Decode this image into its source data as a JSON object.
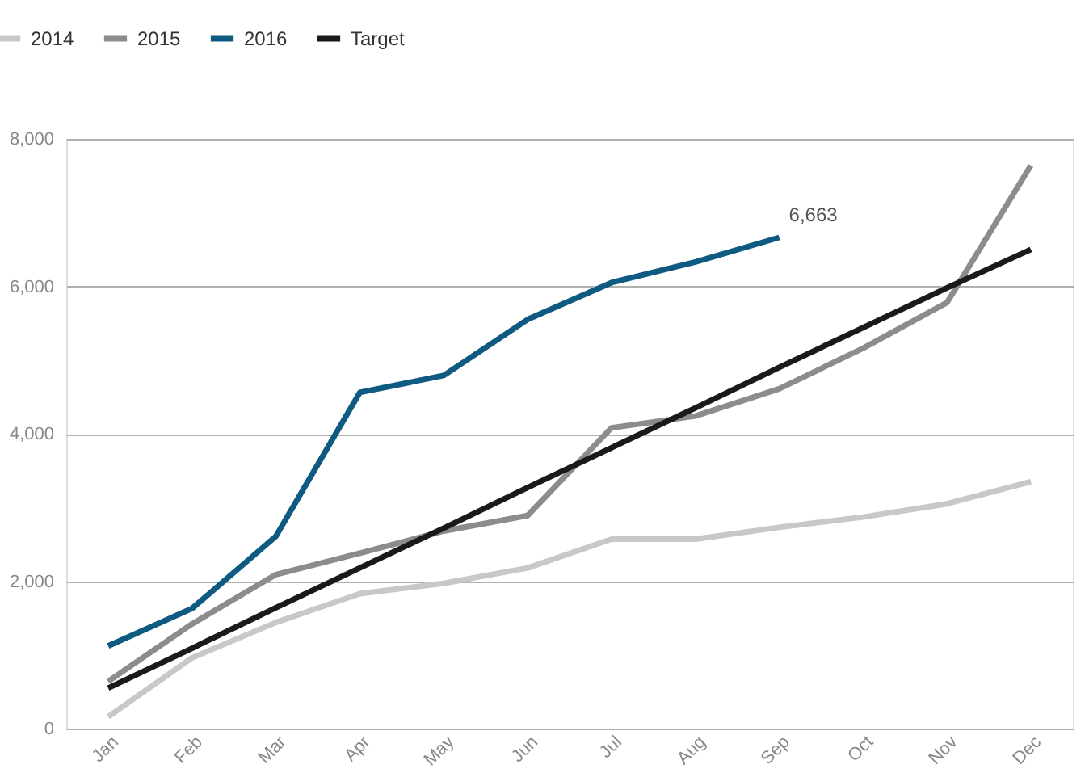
{
  "chart_data": {
    "type": "line",
    "categories": [
      "Jan",
      "Feb",
      "Mar",
      "Apr",
      "May",
      "Jun",
      "Jul",
      "Aug",
      "Sep",
      "Oct",
      "Nov",
      "Dec"
    ],
    "series": [
      {
        "name": "2014",
        "color": "#c8c8c8",
        "values": [
          160,
          960,
          1440,
          1830,
          1970,
          2180,
          2570,
          2570,
          2730,
          2870,
          3050,
          3350
        ]
      },
      {
        "name": "2015",
        "color": "#8c8c8c",
        "values": [
          640,
          1420,
          2090,
          2380,
          2680,
          2890,
          4080,
          4240,
          4610,
          5160,
          5780,
          7640
        ]
      },
      {
        "name": "2016",
        "color": "#0e5a80",
        "values": [
          1120,
          1630,
          2610,
          4560,
          4790,
          5550,
          6050,
          6330,
          6663,
          null,
          null,
          null
        ]
      },
      {
        "name": "Target",
        "color": "#1a1a1a",
        "values": [
          550,
          1090,
          1640,
          2180,
          2720,
          3270,
          3810,
          4350,
          4900,
          5440,
          5980,
          6500
        ]
      }
    ],
    "ylim": [
      0,
      8000
    ],
    "yticks": [
      0,
      {
        "value": 2000,
        "label": "2,000"
      },
      {
        "value": 4000,
        "label": "4,000"
      },
      {
        "value": 6000,
        "label": "6,000"
      },
      {
        "value": 8000,
        "label": "8,000"
      }
    ],
    "grid": "y",
    "legend": "top left",
    "marker": "none",
    "line_style": "solid",
    "annotations": [
      {
        "text": "6,663",
        "x": "Sep",
        "y": 6663
      }
    ]
  }
}
